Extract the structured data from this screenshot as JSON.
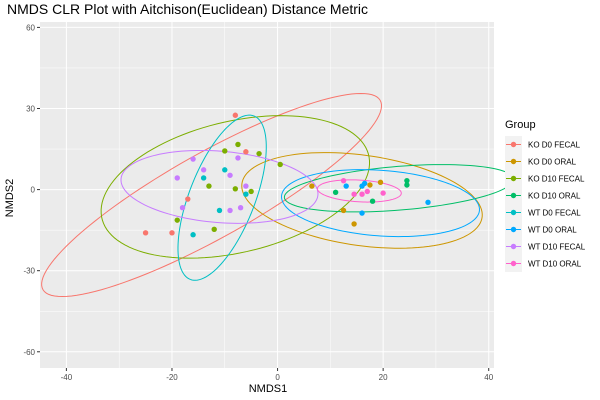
{
  "chart_data": {
    "type": "scatter",
    "title": "NMDS CLR Plot with Aitchison(Euclidean) Distance Metric",
    "xlabel": "NMDS1",
    "ylabel": "NMDS2",
    "xlim": [
      -45,
      41
    ],
    "ylim": [
      -66,
      62
    ],
    "xticks": [
      -40,
      -20,
      0,
      20,
      40
    ],
    "yticks": [
      -60,
      -30,
      0,
      30,
      60
    ],
    "grid": true,
    "legend": {
      "title": "Group",
      "position": "right"
    },
    "series": [
      {
        "name": "KO D0 FECAL",
        "color": "#F8766D",
        "points": [
          [
            -25,
            -16
          ],
          [
            -20,
            -16
          ],
          [
            -17,
            -3.5
          ],
          [
            -8,
            27.5
          ],
          [
            -6,
            14
          ]
        ],
        "ellipse": {
          "cx": -12.5,
          "cy": -2,
          "rx": 48,
          "ry": 12,
          "angle": 50
        }
      },
      {
        "name": "KO D0 ORAL",
        "color": "#CD9600",
        "points": [
          [
            6.5,
            1.3
          ],
          [
            12.5,
            -7.7
          ],
          [
            14.5,
            -12.7
          ],
          [
            17.5,
            1.7
          ],
          [
            19.5,
            2.7
          ]
        ],
        "ellipse": {
          "cx": 16,
          "cy": -4,
          "rx": 24,
          "ry": 16,
          "angle": -25
        }
      },
      {
        "name": "KO D10 FECAL",
        "color": "#7CAE00",
        "points": [
          [
            -19,
            -11.3
          ],
          [
            -13,
            1.3
          ],
          [
            -12,
            -14.7
          ],
          [
            -10,
            14.3
          ],
          [
            -8,
            0.3
          ],
          [
            -7.5,
            16.7
          ],
          [
            -5,
            -0.7
          ],
          [
            -3.5,
            13.3
          ],
          [
            0.5,
            9.3
          ]
        ],
        "ellipse": {
          "cx": -8,
          "cy": 1,
          "rx": 30,
          "ry": 21,
          "angle": 48
        }
      },
      {
        "name": "KO D10 ORAL",
        "color": "#00BE67",
        "points": [
          [
            11,
            -1.0
          ],
          [
            18,
            -4.3
          ],
          [
            24.5,
            1.7
          ],
          [
            24.5,
            3.3
          ]
        ],
        "ellipse": {
          "cx": 23,
          "cy": 0.5,
          "rx": 22,
          "ry": 8,
          "angle": 10
        }
      },
      {
        "name": "WT D0 FECAL",
        "color": "#00BFC4",
        "points": [
          [
            -16,
            -16.7
          ],
          [
            -14,
            4.3
          ],
          [
            -11,
            -7.7
          ],
          [
            -10,
            7.3
          ],
          [
            -6,
            -1.7
          ]
        ],
        "ellipse": {
          "cx": -10.5,
          "cy": -3,
          "rx": 31,
          "ry": 6.5,
          "angle": 80
        }
      },
      {
        "name": "WT D0 ORAL",
        "color": "#00A9FF",
        "points": [
          [
            13,
            1.3
          ],
          [
            16,
            1.3
          ],
          [
            16,
            -8.7
          ],
          [
            16.5,
            2.3
          ],
          [
            28.5,
            -4.7
          ]
        ],
        "ellipse": {
          "cx": 19.5,
          "cy": -5,
          "rx": 19,
          "ry": 12,
          "angle": -12
        }
      },
      {
        "name": "WT D10 FECAL",
        "color": "#C77CFF",
        "points": [
          [
            -19,
            4.3
          ],
          [
            -18,
            -6.7
          ],
          [
            -16,
            11.3
          ],
          [
            -14,
            7.3
          ],
          [
            -9,
            -7.7
          ],
          [
            -6,
            1.3
          ],
          [
            -7,
            -6.7
          ],
          [
            -9,
            5.3
          ],
          [
            -7.5,
            11.7
          ]
        ],
        "ellipse": {
          "cx": -11,
          "cy": 1,
          "rx": 19,
          "ry": 13,
          "angle": -15
        }
      },
      {
        "name": "WT D10 ORAL",
        "color": "#FF61CC",
        "points": [
          [
            12.5,
            3.3
          ],
          [
            14.5,
            -1.7
          ],
          [
            16,
            -1.7
          ],
          [
            17,
            -0.7
          ],
          [
            20,
            -1.3
          ]
        ],
        "ellipse": {
          "cx": 15.5,
          "cy": -0.5,
          "rx": 8,
          "ry": 4,
          "angle": -8
        }
      }
    ]
  }
}
